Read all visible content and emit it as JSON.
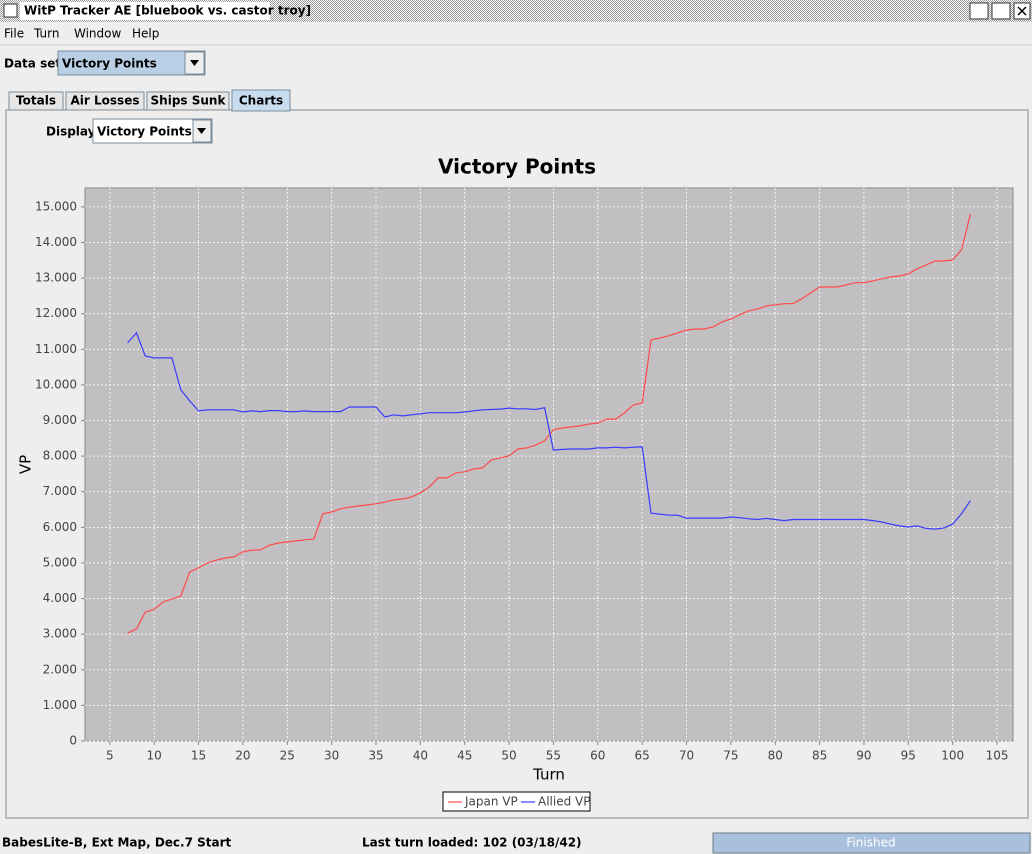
{
  "ui": {
    "window_title": "WitP Tracker AE [bluebook vs. castor troy]",
    "menu": [
      "File",
      "Turn",
      "Window",
      "Help"
    ],
    "dataset_label": "Data set:",
    "dataset_value": "Victory Points",
    "tabs": [
      "Totals",
      "Air Losses",
      "Ships Sunk",
      "Charts"
    ],
    "display_label": "Display:",
    "display_value": "Victory Points",
    "status": {
      "left": "BabesLite-B, Ext Map, Dec.7 Start",
      "center": "Last turn loaded: 102 (03/18/42)",
      "progress": "Finished"
    }
  },
  "chart_data": {
    "type": "line",
    "title": "Victory Points",
    "x_label": "Turn",
    "y_label": "VP",
    "x": [
      7,
      8,
      9,
      10,
      11,
      12,
      13,
      14,
      15,
      16,
      17,
      18,
      19,
      20,
      21,
      22,
      23,
      24,
      25,
      26,
      27,
      28,
      29,
      30,
      31,
      32,
      33,
      34,
      35,
      36,
      37,
      38,
      39,
      40,
      41,
      42,
      43,
      44,
      45,
      46,
      47,
      48,
      49,
      50,
      51,
      52,
      53,
      54,
      55,
      56,
      57,
      58,
      59,
      60,
      61,
      62,
      63,
      64,
      65,
      66,
      67,
      68,
      69,
      70,
      71,
      72,
      73,
      74,
      75,
      76,
      77,
      78,
      79,
      80,
      81,
      82,
      83,
      84,
      85,
      86,
      87,
      88,
      89,
      90,
      91,
      92,
      93,
      94,
      95,
      96,
      97,
      98,
      99,
      100,
      101,
      102
    ],
    "xlim": [
      2.2,
      106.8
    ],
    "xticks": [
      5,
      10,
      15,
      20,
      25,
      30,
      35,
      40,
      45,
      50,
      55,
      60,
      65,
      70,
      75,
      80,
      85,
      90,
      95,
      100,
      105
    ],
    "ylim": [
      0,
      15530
    ],
    "yticks": [
      0,
      {
        "value": 1000,
        "label": "1.000"
      },
      {
        "value": 2000,
        "label": "2.000"
      },
      {
        "value": 3000,
        "label": "3.000"
      },
      {
        "value": 4000,
        "label": "4.000"
      },
      {
        "value": 5000,
        "label": "5.000"
      },
      {
        "value": 6000,
        "label": "6.000"
      },
      {
        "value": 7000,
        "label": "7.000"
      },
      {
        "value": 8000,
        "label": "8.000"
      },
      {
        "value": 9000,
        "label": "9.000"
      },
      {
        "value": 10000,
        "label": "10.000"
      },
      {
        "value": 11000,
        "label": "11.000"
      },
      {
        "value": 12000,
        "label": "12.000"
      },
      {
        "value": 13000,
        "label": "13.000"
      },
      {
        "value": 14000,
        "label": "14.000"
      },
      {
        "value": 15000,
        "label": "15.000"
      }
    ],
    "grid": true,
    "legend": "bottom",
    "series": [
      {
        "name": "Japan VP",
        "color": "#ff4a4a",
        "values": [
          3030,
          3150,
          3620,
          3700,
          3900,
          3990,
          4070,
          4750,
          4860,
          5000,
          5080,
          5140,
          5170,
          5310,
          5360,
          5370,
          5500,
          5560,
          5590,
          5620,
          5650,
          5670,
          6380,
          6430,
          6520,
          6570,
          6600,
          6630,
          6660,
          6710,
          6770,
          6800,
          6850,
          6970,
          7130,
          7390,
          7390,
          7530,
          7560,
          7640,
          7670,
          7890,
          7950,
          8010,
          8200,
          8230,
          8310,
          8430,
          8740,
          8790,
          8820,
          8850,
          8900,
          8930,
          9040,
          9040,
          9210,
          9440,
          9490,
          11260,
          11320,
          11380,
          11460,
          11540,
          11570,
          11570,
          11630,
          11770,
          11850,
          11970,
          12080,
          12130,
          12220,
          12250,
          12280,
          12280,
          12420,
          12580,
          12750,
          12750,
          12750,
          12810,
          12870,
          12870,
          12920,
          12980,
          13030,
          13060,
          13120,
          13260,
          13370,
          13480,
          13480,
          13510,
          13790,
          14800
        ]
      },
      {
        "name": "Allied VP",
        "color": "#3a3aff",
        "values": [
          11180,
          11460,
          10810,
          10760,
          10760,
          10760,
          9860,
          9550,
          9270,
          9300,
          9300,
          9300,
          9300,
          9240,
          9270,
          9250,
          9280,
          9280,
          9250,
          9250,
          9270,
          9250,
          9250,
          9250,
          9250,
          9380,
          9380,
          9380,
          9380,
          9100,
          9160,
          9130,
          9160,
          9190,
          9220,
          9220,
          9220,
          9220,
          9240,
          9270,
          9300,
          9310,
          9320,
          9350,
          9330,
          9330,
          9310,
          9360,
          8170,
          8190,
          8200,
          8200,
          8200,
          8230,
          8230,
          8250,
          8230,
          8250,
          8260,
          6400,
          6370,
          6340,
          6340,
          6260,
          6260,
          6260,
          6260,
          6260,
          6290,
          6270,
          6240,
          6220,
          6250,
          6220,
          6190,
          6220,
          6220,
          6220,
          6220,
          6220,
          6220,
          6220,
          6220,
          6220,
          6190,
          6150,
          6090,
          6040,
          6010,
          6040,
          5970,
          5950,
          5980,
          6090,
          6380,
          6750
        ]
      }
    ]
  }
}
